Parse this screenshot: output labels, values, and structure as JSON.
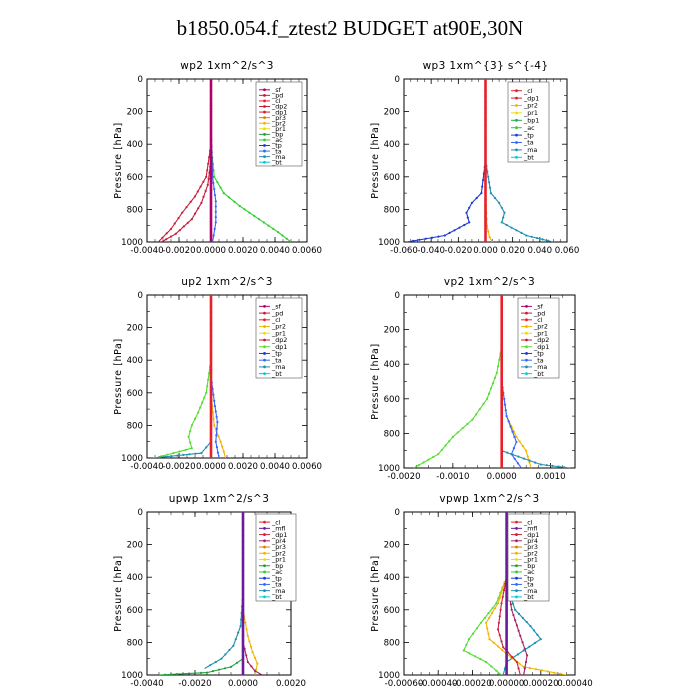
{
  "figure_title": "b1850.054.f_ztest2  BUDGET at90E,30N",
  "colors": {
    "sf": "#b0006a",
    "pd": "#cc1a3a",
    "cl": "#e8202a",
    "dp2": "#c41e3a",
    "dp1": "#cc2040",
    "pr3": "#e37a00",
    "pr2": "#f2b400",
    "pr1": "#eedd00",
    "bp": "#1e9e3a",
    "ac": "#33cc33",
    "tp": "#1a3ad8",
    "ta": "#3366ff",
    "ma": "#1f8fb0",
    "bt": "#00ccdd",
    "mfl": "#6a1a9a",
    "pr4": "#aa2266",
    "bp1": "#22aa44",
    "dp_green": "#55dd33"
  },
  "chart_data": [
    {
      "type": "line",
      "title": "wp2   1xm^2/s^3",
      "ylabel": "Pressure  [hPa]",
      "xlim": [
        -0.004,
        0.006
      ],
      "ylim": [
        1000,
        0
      ],
      "xticks": [
        "-0.0040",
        "-0.0020",
        "0.0000",
        "0.0020",
        "0.0040",
        "0.0060"
      ],
      "xtick_values": [
        -0.004,
        -0.002,
        0,
        0.002,
        0.004,
        0.006
      ],
      "yticks": [
        "0",
        "200",
        "400",
        "600",
        "800",
        "1000"
      ],
      "legend": [
        "_sf",
        "_pd",
        "_cl",
        "_dp2",
        "_dp1",
        "_pr3",
        "_pr2",
        "_pr1",
        "_bp",
        "_ac",
        "_tp",
        "_ta",
        "_ma",
        "_bt"
      ],
      "legend_colors": [
        "sf",
        "pd",
        "cl",
        "dp2",
        "dp1",
        "pr3",
        "pr2",
        "pr1",
        "bp",
        "ac",
        "tp",
        "ta",
        "ma",
        "bt"
      ],
      "series": [
        {
          "color": "ac",
          "x": [
            0.0,
            0.0,
            0.0,
            0.0002,
            0.0008,
            0.0018,
            0.003,
            0.0042,
            0.005
          ],
          "y": [
            0,
            200,
            400,
            600,
            700,
            780,
            860,
            940,
            1000
          ]
        },
        {
          "color": "dp1",
          "x": [
            0.0,
            0.0,
            0.0,
            -0.0003,
            -0.001,
            -0.0018,
            -0.0025,
            -0.0033
          ],
          "y": [
            0,
            200,
            400,
            600,
            720,
            820,
            920,
            1000
          ]
        },
        {
          "color": "dp2",
          "x": [
            0.0,
            0.0,
            0.0,
            -0.0002,
            -0.0006,
            -0.0012,
            -0.0022,
            -0.0031
          ],
          "y": [
            0,
            300,
            500,
            650,
            760,
            860,
            950,
            1000
          ]
        },
        {
          "color": "ta",
          "x": [
            0.0,
            0.0,
            0.0001,
            0.0003,
            0.0003,
            0.0001
          ],
          "y": [
            0,
            300,
            600,
            750,
            880,
            1000
          ]
        },
        {
          "color": "sf",
          "x": [
            0.0,
            0.0,
            0.0,
            0.0,
            0.0
          ],
          "y": [
            0,
            250,
            500,
            750,
            1000
          ]
        }
      ]
    },
    {
      "type": "line",
      "title": "wp3   1xm^{3} s^{-4}",
      "ylabel": "Pressure  [hPa]",
      "xlim": [
        -0.06,
        0.06
      ],
      "ylim": [
        1000,
        0
      ],
      "xticks": [
        "-0.060",
        "-0.040",
        "-0.020",
        "0.000",
        "0.020",
        "0.040",
        "0.060"
      ],
      "xtick_values": [
        -0.06,
        -0.04,
        -0.02,
        0,
        0.02,
        0.04,
        0.06
      ],
      "yticks": [
        "0",
        "200",
        "400",
        "600",
        "800",
        "1000"
      ],
      "legend": [
        "_cl",
        "_dp1",
        "_pr2",
        "_pr1",
        "_bp1",
        "_ac",
        "_tp",
        "_ta",
        "_ma",
        "_bt"
      ],
      "legend_colors": [
        "cl",
        "dp1",
        "pr2",
        "pr1",
        "bp1",
        "ac",
        "tp",
        "ta",
        "ma",
        "bt"
      ],
      "series": [
        {
          "color": "tp",
          "x": [
            0.0,
            0.0,
            -0.003,
            -0.01,
            -0.014,
            -0.012,
            -0.03,
            -0.058
          ],
          "y": [
            0,
            500,
            700,
            760,
            820,
            880,
            960,
            1000
          ]
        },
        {
          "color": "ma",
          "x": [
            0.0,
            0.0,
            0.004,
            0.01,
            0.014,
            0.012,
            0.03,
            0.05
          ],
          "y": [
            0,
            500,
            700,
            760,
            820,
            880,
            960,
            1000
          ]
        },
        {
          "color": "pr2",
          "x": [
            0.0,
            0.0,
            0.001,
            0.003,
            0.005
          ],
          "y": [
            0,
            700,
            900,
            970,
            1000
          ]
        },
        {
          "color": "cl",
          "x": [
            0.0,
            0.0,
            0.0,
            0.0
          ],
          "y": [
            0,
            350,
            700,
            1000
          ]
        }
      ]
    },
    {
      "type": "line",
      "title": "up2   1xm^2/s^3",
      "ylabel": "Pressure  [hPa]",
      "xlim": [
        -0.004,
        0.006
      ],
      "ylim": [
        1000,
        0
      ],
      "xticks": [
        "-0.0040",
        "-0.0020",
        "0.0000",
        "0.0020",
        "0.0040",
        "0.0060"
      ],
      "xtick_values": [
        -0.004,
        -0.002,
        0,
        0.002,
        0.004,
        0.006
      ],
      "yticks": [
        "0",
        "200",
        "400",
        "600",
        "800",
        "1000"
      ],
      "legend": [
        "_sf",
        "_pd",
        "_cl",
        "_pr2",
        "_pr1",
        "_dp2",
        "_dp1",
        "_tp",
        "_ta",
        "_ma",
        "_bt"
      ],
      "legend_colors": [
        "sf",
        "pd",
        "cl",
        "pr2",
        "pr1",
        "dp2",
        "dp_green",
        "tp",
        "ta",
        "ma",
        "bt"
      ],
      "series": [
        {
          "color": "dp_green",
          "x": [
            0.0,
            0.0,
            -0.0003,
            -0.0008,
            -0.0012,
            -0.0014,
            -0.0012,
            -0.0035
          ],
          "y": [
            0,
            400,
            600,
            720,
            800,
            870,
            940,
            1000
          ]
        },
        {
          "color": "pr2",
          "x": [
            0.0,
            0.0,
            0.0002,
            0.0006,
            0.0008,
            0.0009
          ],
          "y": [
            0,
            600,
            800,
            900,
            960,
            1000
          ]
        },
        {
          "color": "ta",
          "x": [
            0.0,
            0.0,
            0.0002,
            0.0004,
            0.0003,
            0.0005
          ],
          "y": [
            0,
            500,
            650,
            780,
            900,
            1000
          ]
        },
        {
          "color": "ma",
          "x": [
            0.0,
            0.0,
            0.0,
            -0.0006,
            -0.0036
          ],
          "y": [
            0,
            500,
            900,
            970,
            1000
          ]
        },
        {
          "color": "cl",
          "x": [
            0.0,
            0.0,
            0.0,
            0.0
          ],
          "y": [
            0,
            350,
            700,
            1000
          ]
        }
      ]
    },
    {
      "type": "line",
      "title": "vp2   1xm^2/s^3",
      "ylabel": "Pressure  [hPa]",
      "xlim": [
        -0.002,
        0.0015
      ],
      "ylim": [
        1000,
        0
      ],
      "xticks": [
        "-0.0020",
        "-0.0010",
        "0.0000",
        "0.0010"
      ],
      "xtick_values": [
        -0.002,
        -0.001,
        0,
        0.001
      ],
      "yticks": [
        "0",
        "200",
        "400",
        "600",
        "800",
        "1000"
      ],
      "legend": [
        "_sf",
        "_pd",
        "_cl",
        "_pr2",
        "_pr1",
        "_dp2",
        "_dp1",
        "_tp",
        "_ta",
        "_ma",
        "_bt"
      ],
      "legend_colors": [
        "sf",
        "pd",
        "cl",
        "pr2",
        "pr1",
        "dp2",
        "dp_green",
        "tp",
        "ta",
        "ma",
        "bt"
      ],
      "series": [
        {
          "color": "dp_green",
          "x": [
            0.0,
            0.0,
            -0.0001,
            -0.0003,
            -0.0006,
            -0.001,
            -0.0013,
            -0.0018
          ],
          "y": [
            0,
            300,
            450,
            600,
            720,
            820,
            920,
            1000
          ]
        },
        {
          "color": "pr2",
          "x": [
            0.0,
            0.0,
            0.0001,
            0.0003,
            0.0005,
            0.0006
          ],
          "y": [
            0,
            500,
            700,
            820,
            900,
            1000
          ]
        },
        {
          "color": "ta",
          "x": [
            0.0,
            0.0,
            0.0001,
            0.0003,
            0.0002,
            0.0004
          ],
          "y": [
            0,
            500,
            700,
            850,
            920,
            1000
          ]
        },
        {
          "color": "ma",
          "x": [
            0.0,
            0.0,
            0.0008,
            0.0014
          ],
          "y": [
            0,
            900,
            980,
            1000
          ]
        },
        {
          "color": "cl",
          "x": [
            0.0,
            0.0,
            0.0,
            0.0
          ],
          "y": [
            0,
            350,
            700,
            1000
          ]
        }
      ]
    },
    {
      "type": "line",
      "title": "upwp   1xm^2/s^3",
      "ylabel": "Pressure  [hPa]",
      "xlim": [
        -0.004,
        0.002
      ],
      "ylim": [
        1000,
        0
      ],
      "xticks": [
        "-0.0040",
        "-0.0020",
        "0.0000",
        "0.0020"
      ],
      "xtick_values": [
        -0.004,
        -0.002,
        0,
        0.002
      ],
      "yticks": [
        "0",
        "200",
        "400",
        "600",
        "800",
        "1000"
      ],
      "legend": [
        "_cl",
        "_mfl",
        "_dp1",
        "_pr4",
        "_pr3",
        "_pr2",
        "_pr1",
        "_bp",
        "_ac",
        "_tp",
        "_ta",
        "_ma",
        "_bt"
      ],
      "legend_colors": [
        "cl",
        "mfl",
        "dp1",
        "pr4",
        "pr3",
        "pr2",
        "pr1",
        "bp",
        "ac",
        "tp",
        "ta",
        "ma",
        "bt"
      ],
      "series": [
        {
          "color": "ma",
          "x": [
            0.0,
            0.0,
            -0.0001,
            -0.0004,
            -0.0009,
            -0.0016
          ],
          "y": [
            0,
            500,
            700,
            820,
            900,
            960
          ]
        },
        {
          "color": "bp",
          "x": [
            0.0,
            -0.0005,
            -0.0015,
            -0.0035
          ],
          "y": [
            900,
            950,
            985,
            1000
          ]
        },
        {
          "color": "pr2",
          "x": [
            0.0,
            0.0,
            0.0002,
            0.0004,
            0.0006,
            0.0005
          ],
          "y": [
            0,
            600,
            760,
            860,
            930,
            1000
          ]
        },
        {
          "color": "pr4",
          "x": [
            0.0,
            0.0,
            0.0002,
            0.0005,
            0.0008
          ],
          "y": [
            0,
            800,
            920,
            975,
            1000
          ]
        },
        {
          "color": "mfl",
          "x": [
            0.0,
            0.0,
            0.0
          ],
          "y": [
            0,
            500,
            1000
          ]
        }
      ]
    },
    {
      "type": "line",
      "title": "vpwp   1xm^2/s^3",
      "ylabel": "Pressure  [hPa]",
      "xlim": [
        -0.0006,
        0.0004
      ],
      "ylim": [
        1000,
        0
      ],
      "xticks": [
        "-0.00060",
        "-0.00040",
        "-0.00020",
        "0.00000",
        "0.00020",
        "0.00040"
      ],
      "xtick_values": [
        -0.0006,
        -0.0004,
        -0.0002,
        0,
        0.0002,
        0.0004
      ],
      "yticks": [
        "0",
        "200",
        "400",
        "600",
        "800",
        "1000"
      ],
      "legend": [
        "_cl",
        "_mfl",
        "_dp1",
        "_pr4",
        "_pr3",
        "_pr2",
        "_pr1",
        "_bp",
        "_ac",
        "_tp",
        "_ta",
        "_ma",
        "_bt"
      ],
      "legend_colors": [
        "cl",
        "mfl",
        "dp1",
        "pr4",
        "pr3",
        "pr2",
        "pr1",
        "bp",
        "ac",
        "tp",
        "ta",
        "ma",
        "bt"
      ],
      "series": [
        {
          "color": "ma",
          "x": [
            0.0,
            0.0,
            5e-05,
            0.00014,
            0.0002,
            0.0001,
            0.0,
            -2e-05
          ],
          "y": [
            0,
            450,
            600,
            700,
            780,
            850,
            920,
            1000
          ]
        },
        {
          "color": "dp_green",
          "x": [
            0.0,
            0.0,
            -6e-05,
            -0.00015,
            -0.00022,
            -0.00025,
            -0.00012,
            -3e-05
          ],
          "y": [
            0,
            400,
            560,
            680,
            780,
            850,
            920,
            1000
          ]
        },
        {
          "color": "pr2",
          "x": [
            0.0,
            0.0,
            -5e-05,
            -0.00012,
            -0.0001,
            0.0,
            0.0001,
            0.00035
          ],
          "y": [
            0,
            400,
            560,
            680,
            780,
            870,
            950,
            1000
          ]
        },
        {
          "color": "dp1",
          "x": [
            0.0,
            0.0,
            -3e-05,
            -5e-05,
            -2e-05,
            6e-05,
            8e-05
          ],
          "y": [
            0,
            400,
            560,
            720,
            830,
            920,
            1000
          ]
        },
        {
          "color": "pr4",
          "x": [
            0.0,
            0.0,
            3e-05,
            8e-05,
            0.00012,
            0.0001
          ],
          "y": [
            0,
            400,
            600,
            760,
            880,
            1000
          ]
        },
        {
          "color": "mfl",
          "x": [
            0.0,
            0.0,
            0.0
          ],
          "y": [
            0,
            500,
            1000
          ]
        }
      ]
    }
  ]
}
